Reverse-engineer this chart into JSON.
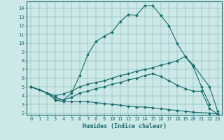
{
  "xlabel": "Humidex (Indice chaleur)",
  "bg_color": "#cce8e8",
  "line_color": "#1a6b6b",
  "xlim": [
    -0.5,
    23.5
  ],
  "ylim": [
    1.8,
    14.8
  ],
  "lines": [
    {
      "x": [
        0,
        1,
        2,
        3,
        4,
        5,
        6,
        7,
        8,
        9,
        10,
        11,
        12,
        13,
        14,
        15,
        16,
        17,
        18,
        19,
        20,
        21,
        22
      ],
      "y": [
        5.0,
        4.7,
        4.3,
        3.5,
        3.5,
        4.3,
        6.3,
        8.7,
        10.2,
        10.8,
        11.3,
        12.5,
        13.3,
        13.2,
        14.3,
        14.3,
        13.2,
        12.0,
        10.0,
        8.5,
        7.3,
        5.0,
        3.0
      ]
    },
    {
      "x": [
        0,
        2,
        3,
        4,
        5,
        6,
        7,
        8,
        9,
        10,
        11,
        12,
        13,
        14,
        15,
        16,
        17,
        18,
        19,
        20,
        22,
        23
      ],
      "y": [
        5.0,
        4.3,
        4.0,
        4.2,
        4.5,
        5.0,
        5.3,
        5.5,
        5.7,
        6.0,
        6.3,
        6.5,
        6.8,
        7.0,
        7.2,
        7.5,
        7.7,
        8.0,
        8.5,
        7.5,
        5.0,
        2.2
      ]
    },
    {
      "x": [
        0,
        2,
        3,
        4,
        5,
        6,
        7,
        8,
        9,
        10,
        11,
        12,
        13,
        14,
        15,
        16,
        17,
        18,
        19,
        20,
        21,
        22,
        23
      ],
      "y": [
        5.0,
        4.3,
        3.8,
        3.5,
        3.8,
        4.3,
        4.5,
        4.8,
        5.0,
        5.3,
        5.5,
        5.8,
        6.0,
        6.3,
        6.5,
        6.2,
        5.7,
        5.2,
        4.8,
        4.5,
        4.5,
        2.5,
        1.9
      ]
    },
    {
      "x": [
        0,
        2,
        3,
        4,
        5,
        6,
        7,
        8,
        9,
        10,
        11,
        12,
        13,
        14,
        15,
        16,
        17,
        18,
        19,
        20,
        22,
        23
      ],
      "y": [
        5.0,
        4.3,
        3.5,
        3.3,
        3.3,
        3.3,
        3.3,
        3.2,
        3.1,
        3.0,
        2.9,
        2.8,
        2.7,
        2.7,
        2.6,
        2.5,
        2.4,
        2.3,
        2.2,
        2.1,
        2.0,
        1.9
      ]
    }
  ],
  "yticks": [
    2,
    3,
    4,
    5,
    6,
    7,
    8,
    9,
    10,
    11,
    12,
    13,
    14
  ],
  "xticks": [
    0,
    1,
    2,
    3,
    4,
    5,
    6,
    7,
    8,
    9,
    10,
    11,
    12,
    13,
    14,
    15,
    16,
    17,
    18,
    19,
    20,
    21,
    22,
    23
  ],
  "tick_fontsize": 5.0,
  "xlabel_fontsize": 6.0,
  "linewidth": 0.8,
  "markersize": 2.0
}
